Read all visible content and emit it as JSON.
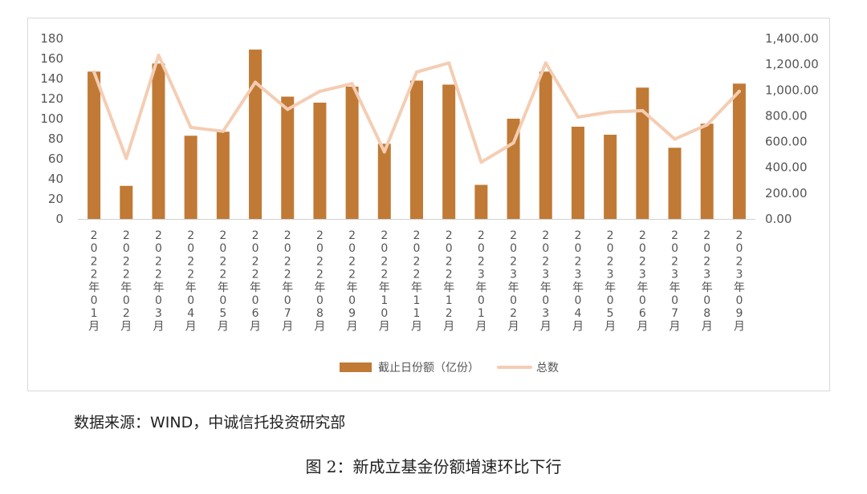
{
  "chart_data": {
    "type": "bar-line-combo",
    "categories": [
      "2022年01月",
      "2022年02月",
      "2022年03月",
      "2022年04月",
      "2022年05月",
      "2022年06月",
      "2022年07月",
      "2022年08月",
      "2022年09月",
      "2022年10月",
      "2022年11月",
      "2022年12月",
      "2023年01月",
      "2023年02月",
      "2023年03月",
      "2023年04月",
      "2023年05月",
      "2023年06月",
      "2023年07月",
      "2023年08月",
      "2023年09月"
    ],
    "series": [
      {
        "name": "截止日份额（亿份）",
        "type": "bar",
        "axis": "left",
        "color": "#C07A35",
        "values": [
          147,
          33,
          155,
          83,
          87,
          169,
          122,
          116,
          132,
          75,
          138,
          134,
          34,
          100,
          147,
          92,
          84,
          131,
          71,
          95,
          135
        ]
      },
      {
        "name": "总数",
        "type": "line",
        "axis": "right",
        "color": "#F4CDB3",
        "values": [
          1140,
          470,
          1270,
          710,
          680,
          1060,
          850,
          990,
          1050,
          520,
          1140,
          1210,
          440,
          590,
          1210,
          790,
          830,
          840,
          620,
          730,
          990
        ]
      }
    ],
    "y_left": {
      "ticks": [
        "0",
        "20",
        "40",
        "60",
        "80",
        "100",
        "120",
        "140",
        "160",
        "180"
      ],
      "range": [
        0,
        180
      ]
    },
    "y_right": {
      "ticks": [
        "0.00",
        "200.00",
        "400.00",
        "600.00",
        "800.00",
        "1,000.00",
        "1,200.00",
        "1,400.00"
      ],
      "range": [
        0,
        1400
      ]
    },
    "grid": false,
    "legend_position": "bottom"
  },
  "source_text": "数据来源：WIND，中诚信托投资研究部",
  "caption_text": "图 2：新成立基金份额增速环比下行"
}
